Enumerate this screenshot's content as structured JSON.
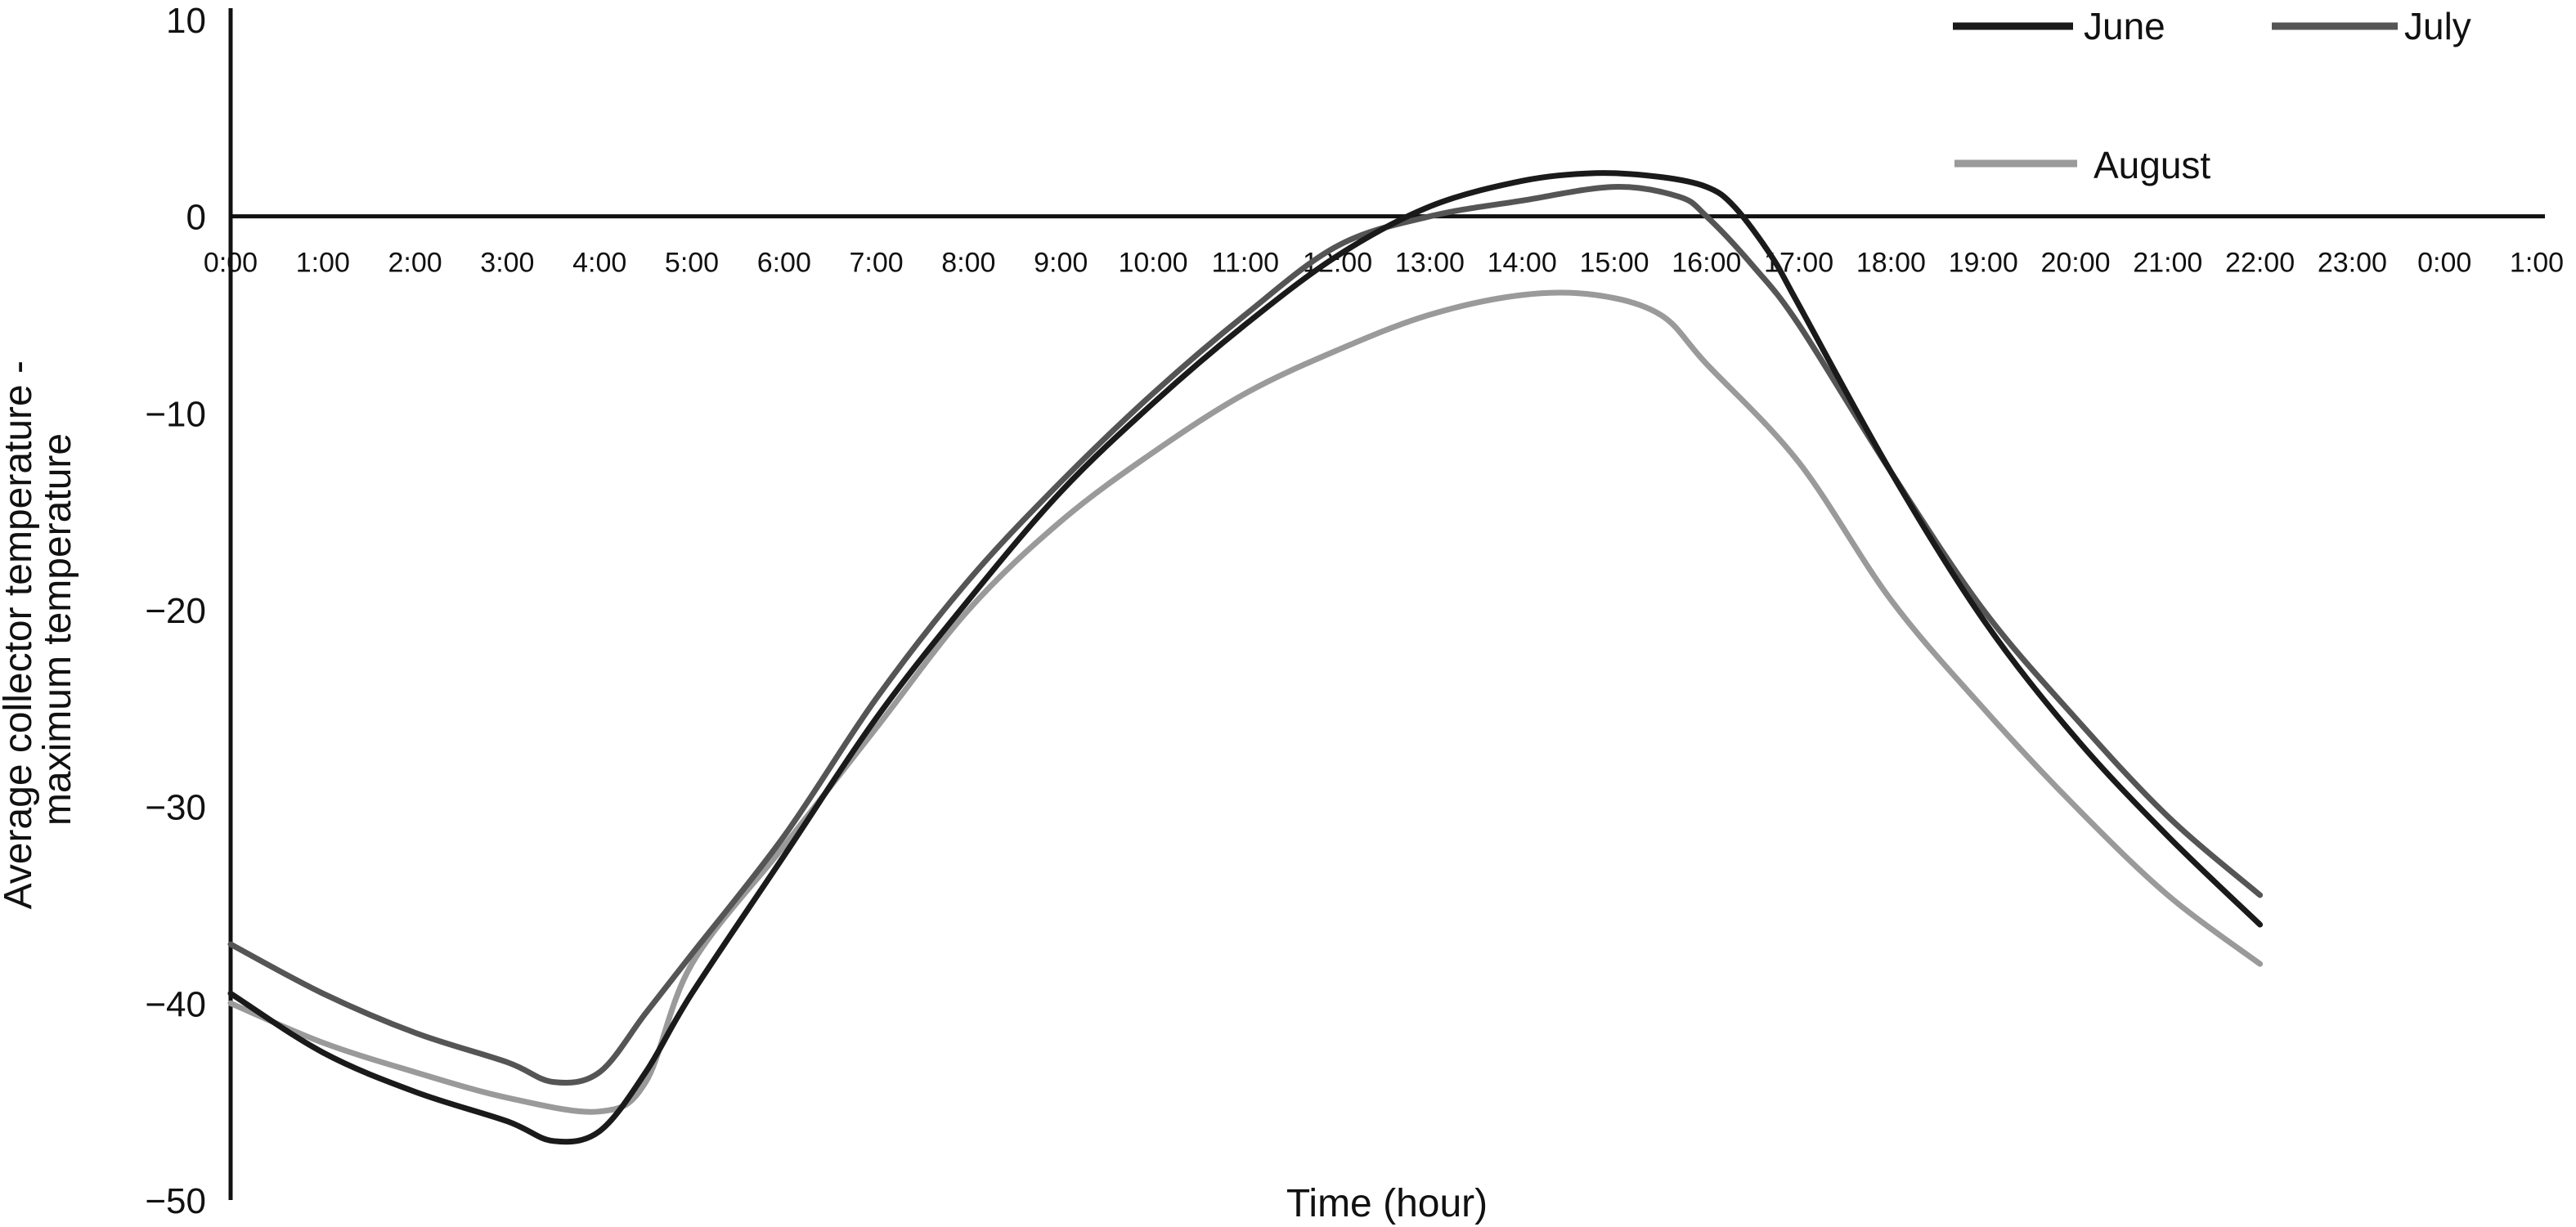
{
  "chart_data": {
    "type": "line",
    "title": "",
    "xlabel": "Time (hour)",
    "ylabel": [
      "Average collector temperature -",
      "maximum temperature"
    ],
    "ylim": [
      -50,
      10
    ],
    "yticks": [
      10,
      0,
      -10,
      -20,
      -30,
      -40,
      -50
    ],
    "ytick_labels": [
      "10",
      "0",
      "−10",
      "−20",
      "−30",
      "−40",
      "−50"
    ],
    "xlim": [
      0,
      25
    ],
    "x_tick_labels": [
      "0:00",
      "1:00",
      "2:00",
      "3:00",
      "4:00",
      "5:00",
      "6:00",
      "7:00",
      "8:00",
      "9:00",
      "10:00",
      "11:00",
      "12:00",
      "13:00",
      "14:00",
      "15:00",
      "16:00",
      "17:00",
      "18:00",
      "19:00",
      "20:00",
      "21:00",
      "22:00",
      "23:00",
      "0:00",
      "1:00"
    ],
    "x_unit": "hours since 0:00",
    "grid": false,
    "legend_position": "top-right",
    "series": [
      {
        "name": "June",
        "color": "#1a1a1a",
        "points": [
          [
            0,
            -39.5
          ],
          [
            1,
            -42.5
          ],
          [
            2,
            -44.5
          ],
          [
            3,
            -46.0
          ],
          [
            3.5,
            -47.0
          ],
          [
            4,
            -46.5
          ],
          [
            4.5,
            -43.5
          ],
          [
            5,
            -39.5
          ],
          [
            6,
            -32.5
          ],
          [
            7,
            -25.5
          ],
          [
            8,
            -19.5
          ],
          [
            9,
            -14.0
          ],
          [
            10,
            -9.5
          ],
          [
            11,
            -5.5
          ],
          [
            12,
            -2.0
          ],
          [
            13,
            0.5
          ],
          [
            14,
            1.8
          ],
          [
            14.8,
            2.2
          ],
          [
            15.5,
            2.0
          ],
          [
            16,
            1.5
          ],
          [
            16.3,
            0.5
          ],
          [
            16.7,
            -2.0
          ],
          [
            17,
            -4.5
          ],
          [
            18,
            -13.0
          ],
          [
            19,
            -20.5
          ],
          [
            20,
            -26.5
          ],
          [
            21,
            -31.5
          ],
          [
            22,
            -36.0
          ]
        ]
      },
      {
        "name": "July",
        "color": "#555555",
        "points": [
          [
            0,
            -37.0
          ],
          [
            1,
            -39.5
          ],
          [
            2,
            -41.5
          ],
          [
            3,
            -43.0
          ],
          [
            3.5,
            -44.0
          ],
          [
            4,
            -43.5
          ],
          [
            4.5,
            -40.5
          ],
          [
            5,
            -37.5
          ],
          [
            6,
            -31.5
          ],
          [
            7,
            -24.5
          ],
          [
            8,
            -18.5
          ],
          [
            9,
            -13.5
          ],
          [
            10,
            -9.0
          ],
          [
            11,
            -5.0
          ],
          [
            12,
            -1.5
          ],
          [
            13,
            0.0
          ],
          [
            14,
            0.8
          ],
          [
            15,
            1.5
          ],
          [
            15.7,
            1.0
          ],
          [
            16,
            0.0
          ],
          [
            16.5,
            -2.5
          ],
          [
            17,
            -5.5
          ],
          [
            18,
            -13.0
          ],
          [
            19,
            -20.0
          ],
          [
            20,
            -25.5
          ],
          [
            21,
            -30.5
          ],
          [
            22,
            -34.5
          ]
        ]
      },
      {
        "name": "August",
        "color": "#9a9a9a",
        "points": [
          [
            0,
            -40.0
          ],
          [
            1,
            -42.0
          ],
          [
            2,
            -43.5
          ],
          [
            3,
            -44.8
          ],
          [
            4,
            -45.5
          ],
          [
            4.5,
            -44.0
          ],
          [
            5,
            -38.0
          ],
          [
            6,
            -32.0
          ],
          [
            7,
            -26.0
          ],
          [
            8,
            -20.0
          ],
          [
            9,
            -15.5
          ],
          [
            10,
            -12.0
          ],
          [
            11,
            -9.0
          ],
          [
            12,
            -6.8
          ],
          [
            13,
            -5.0
          ],
          [
            14,
            -4.0
          ],
          [
            14.8,
            -4.0
          ],
          [
            15.5,
            -5.0
          ],
          [
            16,
            -7.5
          ],
          [
            17,
            -12.5
          ],
          [
            18,
            -19.5
          ],
          [
            19,
            -25.0
          ],
          [
            20,
            -30.0
          ],
          [
            21,
            -34.5
          ],
          [
            22,
            -38.0
          ]
        ]
      }
    ]
  }
}
